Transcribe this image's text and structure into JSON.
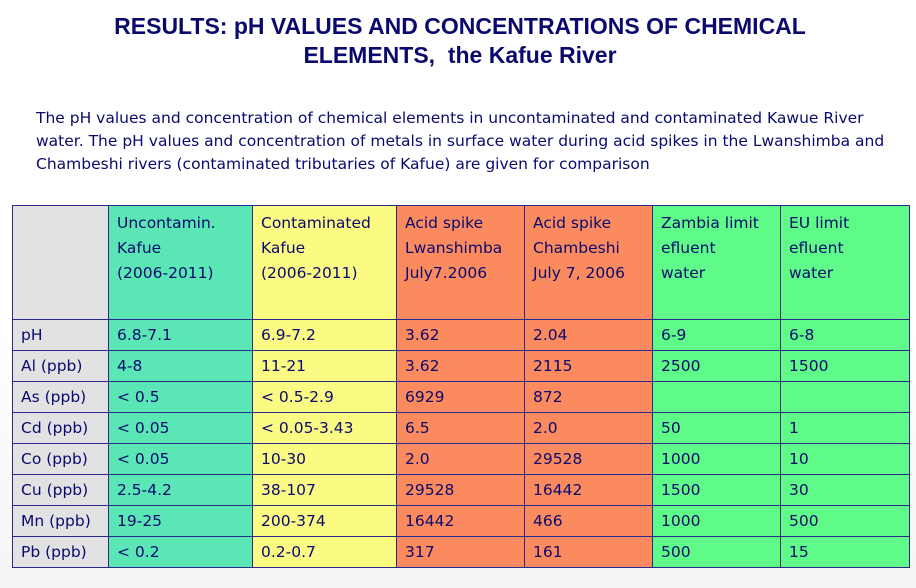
{
  "title": {
    "line1": "RESULTS: pH VALUES AND CONCENTRATIONS OF CHEMICAL",
    "line2": "ELEMENTS,  the Kafue River"
  },
  "intro": "The pH values and concentration of chemical elements in uncontaminated and contaminated Kawue River water. The pH values and concentration of metals in surface water during acid spikes in the Lwanshimba and Chambeshi rivers (contaminated tributaries of Kafue) are given for comparison",
  "colors": {
    "title_text": "#0a0a6e",
    "label_bg": "#e2e2e2",
    "uncontaminated_bg": "#5be6b5",
    "contaminated_bg": "#fbfb84",
    "acid_spike_bg": "#fb8a5e",
    "limit_bg": "#5efb88",
    "border": "#2a2a8a"
  },
  "table": {
    "columns": [
      {
        "lines": [
          ""
        ]
      },
      {
        "lines": [
          "Uncontamin.",
          "Kafue",
          "(2006-2011)"
        ]
      },
      {
        "lines": [
          "Contaminated",
          "Kafue",
          "(2006-2011)"
        ]
      },
      {
        "lines": [
          "Acid spike",
          "Lwanshimba",
          "July7.2006"
        ]
      },
      {
        "lines": [
          "Acid spike",
          "Chambeshi",
          "July 7, 2006"
        ]
      },
      {
        "lines": [
          "Zambia limit",
          "efluent",
          "water"
        ]
      },
      {
        "lines": [
          "EU limit",
          "efluent",
          "water"
        ]
      }
    ],
    "rows": [
      {
        "label": "pH",
        "uncontaminated": "6.8-7.1",
        "contaminated": "6.9-7.2",
        "lwanshimba": "3.62",
        "chambeshi": "2.04",
        "zambia_limit": "6-9",
        "eu_limit": "6-8"
      },
      {
        "label": "Al (ppb)",
        "uncontaminated": "4-8",
        "contaminated": "11-21",
        "lwanshimba": "3.62",
        "chambeshi": "2115",
        "zambia_limit": "2500",
        "eu_limit": "1500"
      },
      {
        "label": "As (ppb)",
        "uncontaminated": "< 0.5",
        "contaminated": "< 0.5-2.9",
        "lwanshimba": "6929",
        "chambeshi": "872",
        "zambia_limit": "",
        "eu_limit": ""
      },
      {
        "label": "Cd (ppb)",
        "uncontaminated": "< 0.05",
        "contaminated": "< 0.05-3.43",
        "lwanshimba": "6.5",
        "chambeshi": "2.0",
        "zambia_limit": "50",
        "eu_limit": "1"
      },
      {
        "label": "Co (ppb)",
        "uncontaminated": "< 0.05",
        "contaminated": "10-30",
        "lwanshimba": "2.0",
        "chambeshi": "29528",
        "zambia_limit": "1000",
        "eu_limit": "10"
      },
      {
        "label": "Cu (ppb)",
        "uncontaminated": "2.5-4.2",
        "contaminated": "38-107",
        "lwanshimba": "29528",
        "chambeshi": "16442",
        "zambia_limit": "1500",
        "eu_limit": "30"
      },
      {
        "label": "Mn (ppb)",
        "uncontaminated": "19-25",
        "contaminated": "200-374",
        "lwanshimba": "16442",
        "chambeshi": "466",
        "zambia_limit": "1000",
        "eu_limit": "500"
      },
      {
        "label": "Pb (ppb)",
        "uncontaminated": "< 0.2",
        "contaminated": "0.2-0.7",
        "lwanshimba": "317",
        "chambeshi": "161",
        "zambia_limit": "500",
        "eu_limit": "15"
      }
    ]
  }
}
